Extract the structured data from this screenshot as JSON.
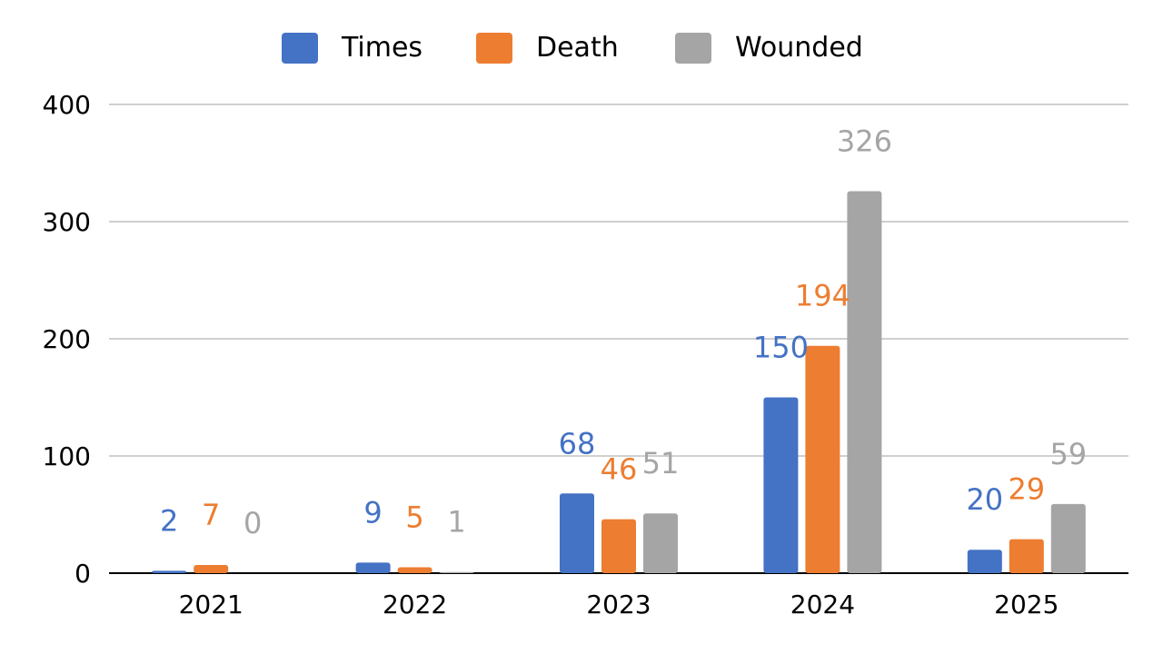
{
  "chart_data": {
    "type": "bar",
    "title": "",
    "xlabel": "",
    "ylabel": "",
    "categories": [
      "2021",
      "2022",
      "2023",
      "2024",
      "2025"
    ],
    "series": [
      {
        "name": "Times",
        "color": "#4472C4",
        "values": [
          2,
          9,
          68,
          150,
          20
        ]
      },
      {
        "name": "Death",
        "color": "#ED7D31",
        "values": [
          7,
          5,
          46,
          194,
          29
        ]
      },
      {
        "name": "Wounded",
        "color": "#A5A5A5",
        "values": [
          0,
          1,
          51,
          326,
          59
        ]
      }
    ],
    "ylim": [
      0,
      400
    ],
    "yticks": [
      0,
      100,
      200,
      300,
      400
    ],
    "grid": true,
    "legend": "top-center"
  }
}
